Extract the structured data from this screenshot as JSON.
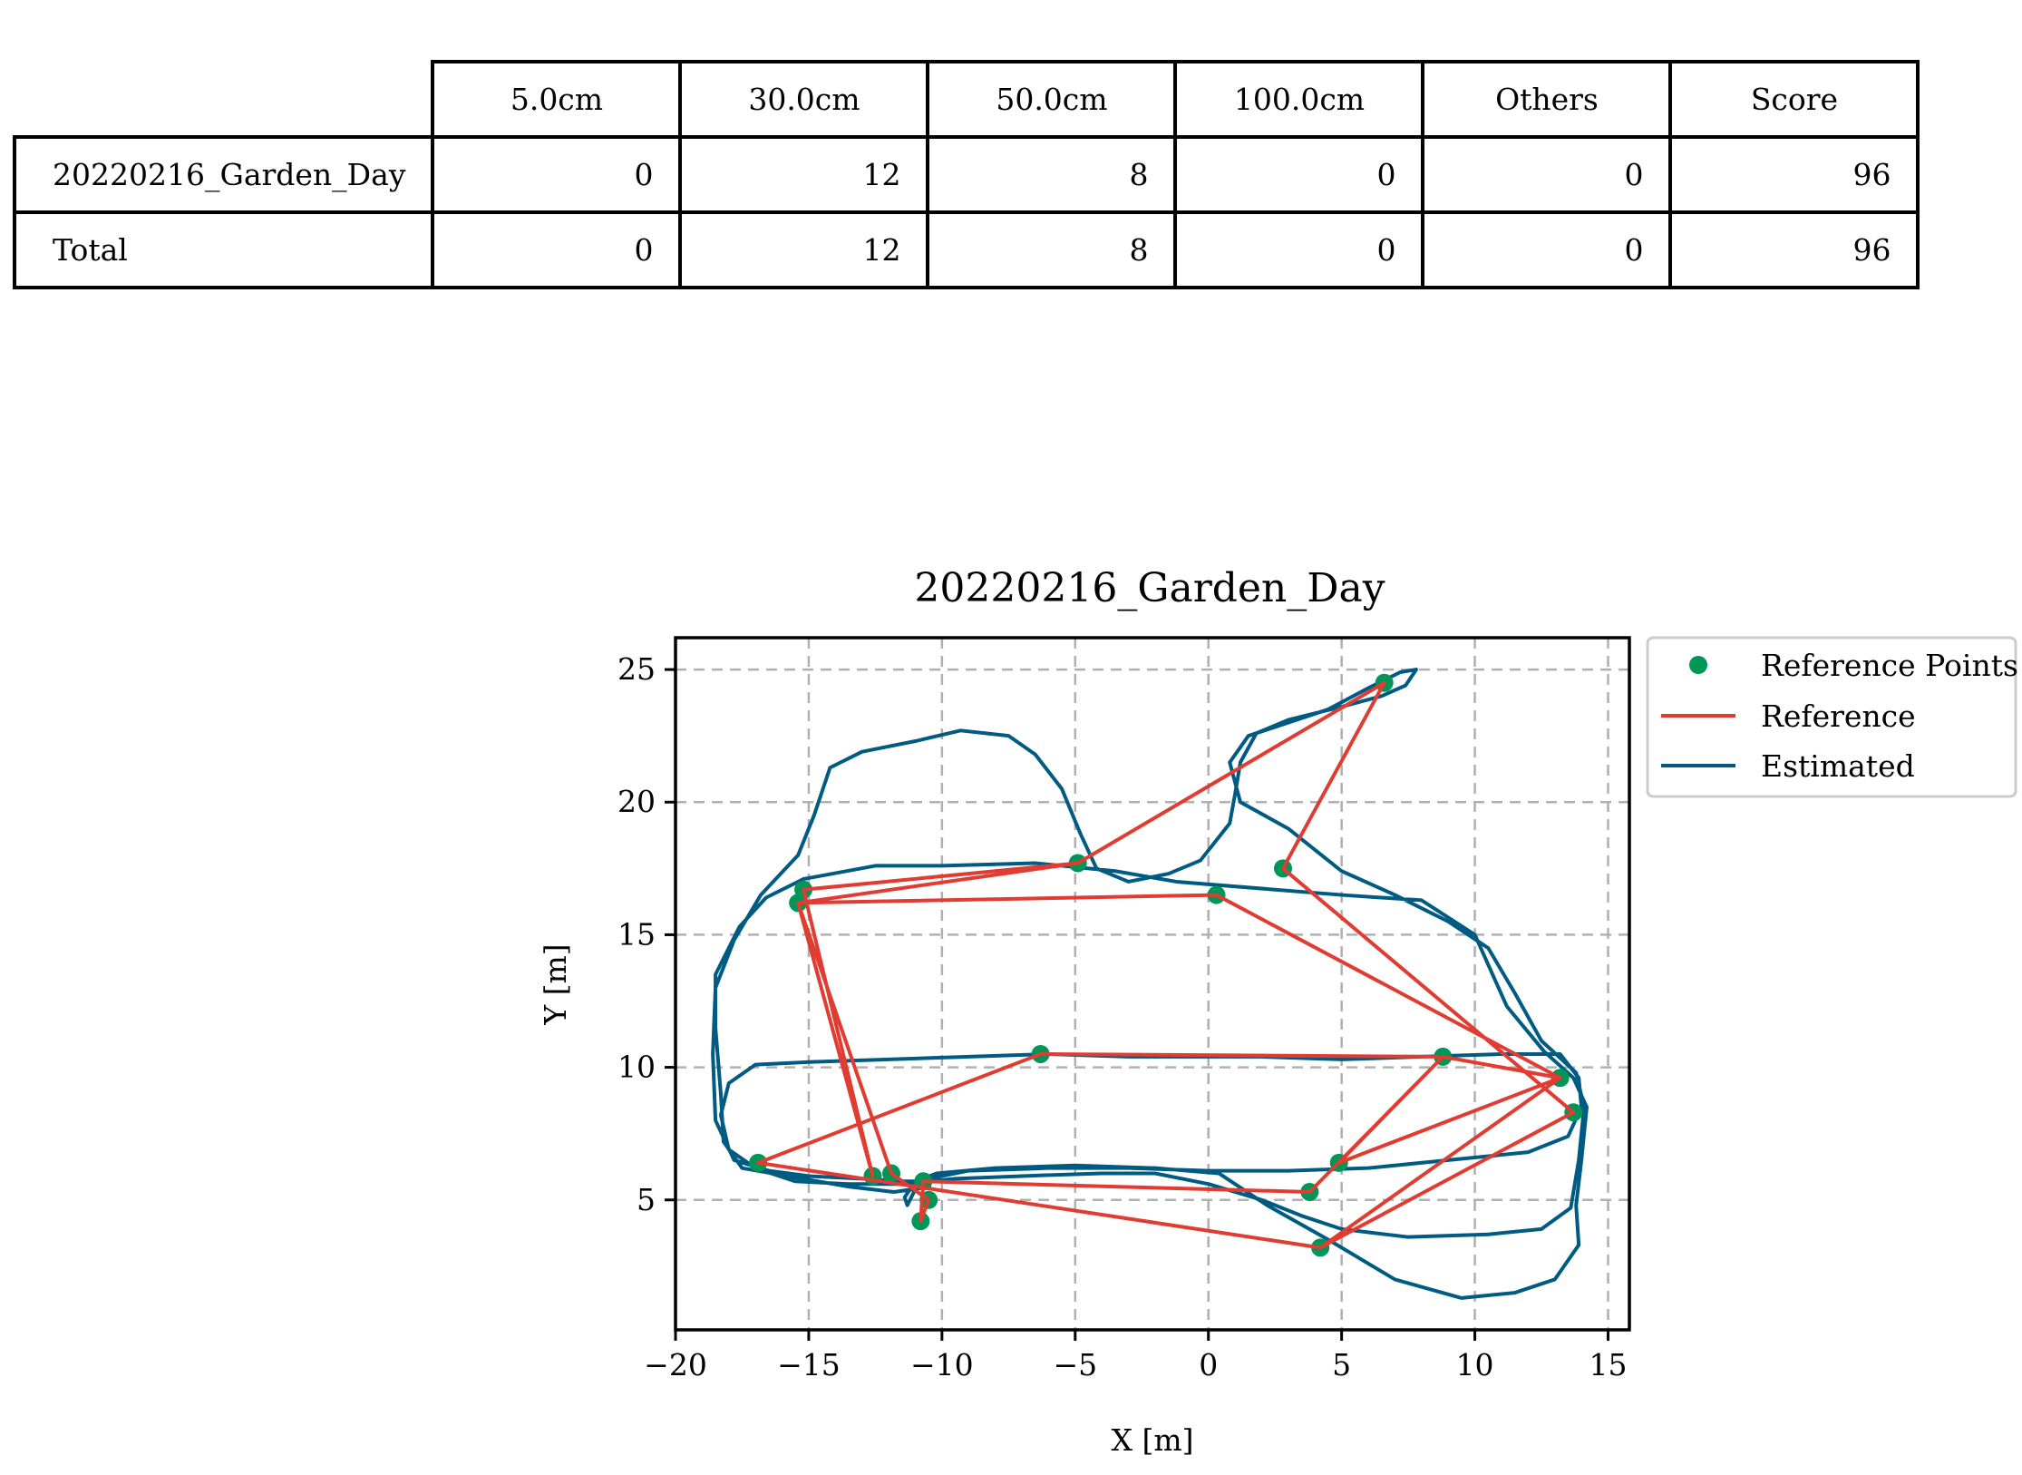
{
  "table": {
    "columns": [
      "5.0cm",
      "30.0cm",
      "50.0cm",
      "100.0cm",
      "Others",
      "Score"
    ],
    "rows": [
      {
        "label": "20220216_Garden_Day",
        "values": [
          "0",
          "12",
          "8",
          "0",
          "0",
          "96"
        ]
      },
      {
        "label": "Total",
        "values": [
          "0",
          "12",
          "8",
          "0",
          "0",
          "96"
        ]
      }
    ]
  },
  "chart_data": {
    "type": "line",
    "title": "20220216_Garden_Day",
    "xlabel": "X [m]",
    "ylabel": "Y [m]",
    "xlim": [
      -20,
      15.8
    ],
    "ylim": [
      0.1,
      26.2
    ],
    "xticks": [
      -20,
      -15,
      -10,
      -5,
      0,
      5,
      10,
      15
    ],
    "yticks": [
      5,
      10,
      15,
      20,
      25
    ],
    "xtick_labels": [
      "−20",
      "−15",
      "−10",
      "−5",
      "0",
      "5",
      "10",
      "15"
    ],
    "ytick_labels": [
      "5",
      "10",
      "15",
      "20",
      "25"
    ],
    "grid": true,
    "legend_position": "outside-top-right",
    "colors": {
      "reference_points": "#009658",
      "reference": "#e03c31",
      "estimated": "#005b82",
      "grid": "#b0b0b0"
    },
    "series": [
      {
        "name": "Reference Points",
        "kind": "scatter",
        "points": [
          [
            6.6,
            24.5
          ],
          [
            2.8,
            17.5
          ],
          [
            13.7,
            8.3
          ],
          [
            4.2,
            3.2
          ],
          [
            -16.9,
            6.4
          ],
          [
            -6.3,
            10.5
          ],
          [
            8.8,
            10.4
          ],
          [
            13.2,
            9.6
          ],
          [
            4.9,
            6.4
          ],
          [
            3.8,
            5.3
          ],
          [
            -10.7,
            5.7
          ],
          [
            -10.8,
            4.2
          ],
          [
            -10.5,
            5.0
          ],
          [
            -11.9,
            6.0
          ],
          [
            -12.6,
            5.9
          ],
          [
            -15.4,
            16.2
          ],
          [
            -15.2,
            16.7
          ],
          [
            -4.9,
            17.7
          ],
          [
            0.3,
            16.5
          ]
        ]
      },
      {
        "name": "Reference",
        "kind": "line",
        "points": [
          [
            -4.9,
            17.7
          ],
          [
            6.6,
            24.5
          ],
          [
            2.8,
            17.5
          ],
          [
            13.7,
            8.3
          ],
          [
            4.2,
            3.2
          ],
          [
            -16.9,
            6.4
          ],
          [
            -6.3,
            10.5
          ],
          [
            8.8,
            10.4
          ],
          [
            13.2,
            9.6
          ],
          [
            4.9,
            6.4
          ],
          [
            8.8,
            10.4
          ],
          [
            3.8,
            5.3
          ],
          [
            -10.7,
            5.7
          ],
          [
            -10.8,
            4.2
          ],
          [
            -10.5,
            5.0
          ],
          [
            -11.9,
            6.0
          ],
          [
            -15.4,
            16.2
          ],
          [
            -12.6,
            5.9
          ],
          [
            -15.2,
            16.7
          ],
          [
            -4.9,
            17.7
          ],
          [
            -15.4,
            16.2
          ],
          [
            0.3,
            16.5
          ],
          [
            13.2,
            9.6
          ],
          [
            4.2,
            3.2
          ]
        ]
      },
      {
        "name": "Estimated",
        "kind": "line",
        "points": [
          [
            -10.4,
            5.5
          ],
          [
            -11.8,
            5.3
          ],
          [
            -13.5,
            5.5
          ],
          [
            -15.8,
            5.9
          ],
          [
            -17.5,
            6.2
          ],
          [
            -18.2,
            7.2
          ],
          [
            -18.3,
            9.0
          ],
          [
            -18.5,
            11.5
          ],
          [
            -18.5,
            13.5
          ],
          [
            -17.6,
            15.3
          ],
          [
            -16.6,
            16.4
          ],
          [
            -15.2,
            17.1
          ],
          [
            -12.5,
            17.6
          ],
          [
            -10.0,
            17.6
          ],
          [
            -6.5,
            17.7
          ],
          [
            -3.5,
            17.4
          ],
          [
            -1.2,
            17.0
          ],
          [
            2.5,
            16.7
          ],
          [
            5.0,
            16.5
          ],
          [
            8.0,
            16.3
          ],
          [
            10.0,
            15.0
          ],
          [
            11.2,
            12.3
          ],
          [
            12.6,
            10.6
          ],
          [
            13.7,
            9.6
          ],
          [
            14.2,
            8.5
          ],
          [
            14.0,
            6.5
          ],
          [
            13.8,
            4.8
          ],
          [
            13.9,
            3.3
          ],
          [
            13.0,
            2.0
          ],
          [
            11.5,
            1.5
          ],
          [
            9.5,
            1.3
          ],
          [
            7.0,
            2.0
          ],
          [
            4.5,
            3.5
          ],
          [
            2.2,
            4.8
          ],
          [
            0.4,
            6.0
          ],
          [
            -2.0,
            6.2
          ],
          [
            -5.0,
            6.3
          ],
          [
            -8.0,
            6.2
          ],
          [
            -10.2,
            6.0
          ],
          [
            -11.0,
            5.7
          ],
          [
            -11.4,
            5.1
          ],
          [
            -11.3,
            4.8
          ],
          [
            -11.0,
            5.4
          ],
          [
            -10.5,
            5.8
          ],
          [
            -9.0,
            6.1
          ],
          [
            -6.0,
            6.2
          ],
          [
            -3.0,
            6.2
          ],
          [
            0.0,
            6.1
          ],
          [
            3.0,
            6.1
          ],
          [
            6.0,
            6.2
          ],
          [
            9.0,
            6.5
          ],
          [
            12.0,
            6.8
          ],
          [
            13.5,
            7.4
          ],
          [
            14.0,
            8.5
          ],
          [
            13.9,
            9.6
          ],
          [
            13.2,
            10.5
          ],
          [
            11.0,
            10.5
          ],
          [
            8.0,
            10.4
          ],
          [
            5.0,
            10.3
          ],
          [
            2.0,
            10.4
          ],
          [
            0.0,
            10.4
          ],
          [
            -3.0,
            10.4
          ],
          [
            -6.0,
            10.5
          ],
          [
            -9.0,
            10.4
          ],
          [
            -12.0,
            10.3
          ],
          [
            -15.0,
            10.2
          ],
          [
            -17.0,
            10.1
          ],
          [
            -18.0,
            9.4
          ],
          [
            -18.3,
            8.2
          ],
          [
            -18.0,
            6.9
          ],
          [
            -17.0,
            6.2
          ],
          [
            -15.5,
            5.7
          ],
          [
            -13.5,
            5.6
          ],
          [
            -11.5,
            5.6
          ],
          [
            -9.5,
            5.8
          ],
          [
            -7.0,
            5.9
          ],
          [
            -4.0,
            6.0
          ],
          [
            -2.0,
            6.0
          ],
          [
            0.0,
            5.6
          ],
          [
            2.0,
            5.0
          ],
          [
            3.5,
            4.4
          ],
          [
            5.0,
            3.9
          ],
          [
            7.5,
            3.6
          ],
          [
            10.5,
            3.7
          ],
          [
            12.5,
            3.9
          ],
          [
            13.6,
            4.7
          ],
          [
            13.9,
            6.5
          ],
          [
            14.1,
            8.5
          ],
          [
            13.8,
            9.8
          ],
          [
            12.5,
            11.0
          ],
          [
            11.5,
            12.8
          ],
          [
            10.5,
            14.5
          ],
          [
            9.0,
            15.5
          ],
          [
            7.0,
            16.5
          ],
          [
            5.0,
            17.4
          ],
          [
            3.0,
            19.0
          ],
          [
            1.2,
            20.0
          ],
          [
            0.8,
            21.5
          ],
          [
            1.5,
            22.5
          ],
          [
            3.0,
            23.0
          ],
          [
            4.5,
            23.5
          ],
          [
            6.0,
            24.3
          ],
          [
            7.2,
            24.9
          ],
          [
            7.8,
            25.0
          ],
          [
            7.4,
            24.4
          ],
          [
            6.5,
            24.0
          ],
          [
            5.0,
            23.6
          ],
          [
            3.0,
            23.1
          ],
          [
            1.8,
            22.6
          ],
          [
            1.2,
            21.5
          ],
          [
            1.0,
            20.3
          ],
          [
            0.8,
            19.2
          ],
          [
            -0.3,
            17.8
          ],
          [
            -1.5,
            17.3
          ],
          [
            -3.0,
            17.0
          ],
          [
            -4.2,
            17.5
          ],
          [
            -4.8,
            18.8
          ],
          [
            -5.5,
            20.5
          ],
          [
            -6.5,
            21.8
          ],
          [
            -7.5,
            22.5
          ],
          [
            -9.3,
            22.7
          ],
          [
            -11.0,
            22.3
          ],
          [
            -13.0,
            21.9
          ],
          [
            -14.2,
            21.3
          ],
          [
            -14.8,
            19.5
          ],
          [
            -15.4,
            18.0
          ],
          [
            -16.8,
            16.5
          ],
          [
            -17.8,
            14.8
          ],
          [
            -18.5,
            13.0
          ],
          [
            -18.6,
            10.5
          ],
          [
            -18.5,
            8.0
          ],
          [
            -17.8,
            6.5
          ],
          [
            -16.5,
            6.1
          ],
          [
            -15.0,
            5.9
          ],
          [
            -13.0,
            5.8
          ],
          [
            -11.5,
            5.7
          ],
          [
            -10.5,
            5.7
          ]
        ]
      }
    ]
  }
}
